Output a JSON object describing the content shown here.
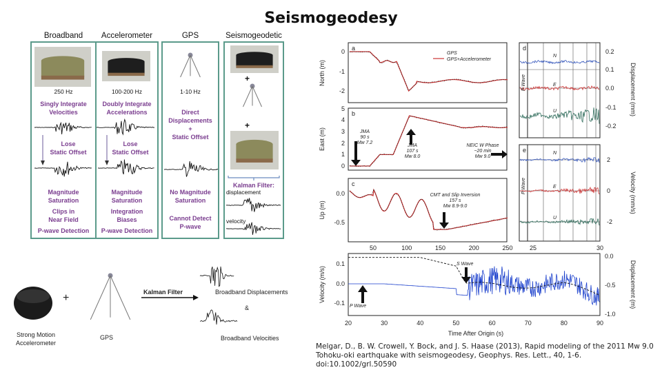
{
  "title": "Seismogeodesy",
  "columns": [
    {
      "header": "Broadband",
      "rate": "250 Hz",
      "method": [
        "Singly Integrate",
        "Velocities"
      ],
      "loss": [
        "Lose",
        "Static Offset"
      ],
      "notes": [
        "Magnitude",
        "Saturation",
        "Clips in",
        "Near Field",
        "P-wave Detection"
      ]
    },
    {
      "header": "Accelerometer",
      "rate": "100-200 Hz",
      "method": [
        "Doubly Integrate",
        "Accelerations"
      ],
      "loss": [
        "Lose",
        "Static Offset"
      ],
      "notes": [
        "Magnitude",
        "Saturation",
        "Integration",
        "Biases",
        "P-wave Detection"
      ]
    },
    {
      "header": "GPS",
      "rate": "1-10 Hz",
      "method": [
        "Direct",
        "Displacements",
        "+",
        "Static Offset"
      ],
      "notes": [
        "No Magnitude",
        "Saturation",
        "Cannot Detect",
        "P-wave"
      ]
    },
    {
      "header": "Seismogeodetic",
      "plus": "+",
      "kalman": "Kalman Filter:",
      "displacement": "displacement",
      "velocity": "velocity"
    }
  ],
  "bottom_diagram": {
    "accelerometer_label": [
      "Strong Motion",
      "Accelerometer"
    ],
    "plus": "+",
    "gps_label": "GPS",
    "kalman_filter": "Kalman Filter",
    "out_displacements": "Broadband Displacements",
    "ampersand": "&",
    "out_velocities": "Broadband Velocities"
  },
  "figure": {
    "panel_a": {
      "letter": "a",
      "ylabel": "North (m)",
      "yticks": [
        "0",
        "-1",
        "-2"
      ],
      "legend": [
        "GPS",
        "GPS+Accelerometer"
      ]
    },
    "panel_b": {
      "letter": "b",
      "ylabel": "East (m)",
      "yticks": [
        "5",
        "4",
        "3",
        "2",
        "1",
        "0"
      ],
      "ann1": [
        "JMA",
        "90 s",
        "Mw 7.2"
      ],
      "ann2": [
        "JMA",
        "107 s",
        "Mw 8.0"
      ],
      "ann3": [
        "NEIC W Phase",
        "~20 min",
        "Mw 9.0"
      ]
    },
    "panel_c": {
      "letter": "c",
      "ylabel": "Up (m)",
      "yticks": [
        "0.0",
        "-0.5"
      ],
      "ann": [
        "CMT and Slip Inversion",
        "157 s",
        "Mw 8.9-9.0"
      ],
      "xticks": [
        "50",
        "100",
        "150",
        "200",
        "250"
      ]
    },
    "panel_d": {
      "letter": "d",
      "ylabel": "Displacement (mm)",
      "yticks": [
        "0.2",
        "0.1",
        "0.0",
        "-0.1",
        "-0.2"
      ],
      "traces": [
        "N",
        "E",
        "U"
      ],
      "pwave": "P Wave"
    },
    "panel_e": {
      "letter": "e",
      "ylabel": "Velocity (mm/s)",
      "yticks": [
        "2",
        "0",
        "-2"
      ],
      "traces": [
        "N",
        "E",
        "U"
      ],
      "pwave": "P Wave",
      "xticks": [
        "25",
        "30"
      ]
    },
    "panel_f": {
      "ylabel_left": "Velocity (m/s)",
      "ylabel_right": "Displacement (m)",
      "yticks_left": [
        "0.1",
        "0.0",
        "-0.1"
      ],
      "yticks_right": [
        "0.0",
        "-0.5",
        "-1.0"
      ],
      "xticks": [
        "20",
        "30",
        "40",
        "50",
        "60",
        "70",
        "80",
        "90"
      ],
      "xlabel": "Time After Origin (s)",
      "s_wave": "S Wave",
      "p_wave": "P Wave"
    },
    "colors": {
      "gps": "#222222",
      "gps_accel": "#cc3333",
      "north": "#3355bb",
      "east": "#cc3333",
      "up": "#2e6b5a",
      "velocity": "#1a3fcc"
    }
  },
  "citation": [
    "Melgar, D., B. W. Crowell, Y. Bock, and J. S. Haase (2013), Rapid modeling of the 2011 Mw 9.0",
    "Tohoku-oki earthquake with seismogeodesy, Geophys. Res. Lett., 40, 1-6.",
    "doi:10.1002/grl.50590"
  ]
}
